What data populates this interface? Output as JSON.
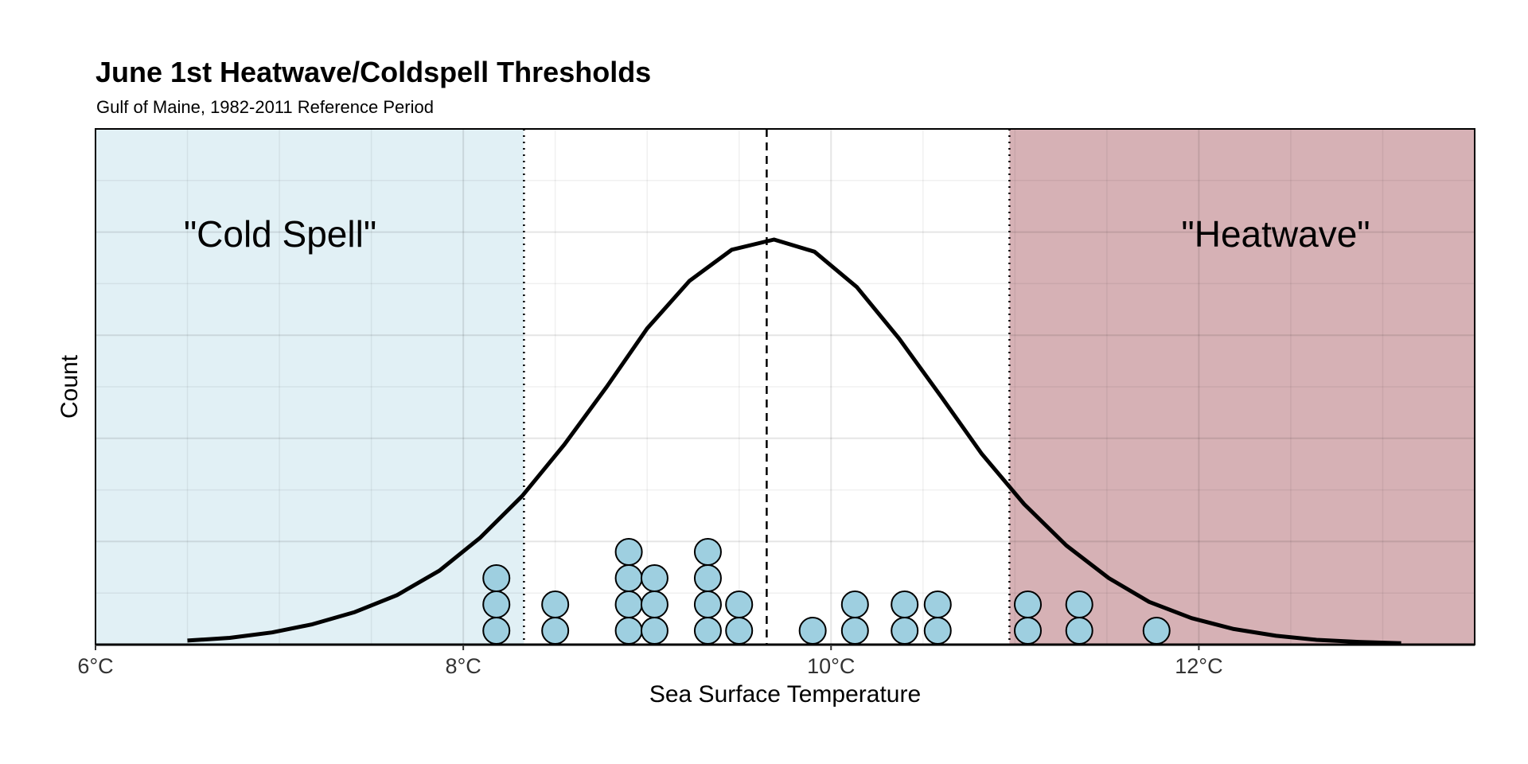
{
  "chart_data": {
    "type": "dotplot",
    "title": "June 1st Heatwave/Coldspell Thresholds",
    "subtitle": "Gulf of Maine, 1982-2011 Reference Period",
    "xlabel": "Sea Surface Temperature",
    "ylabel": "Count",
    "xlim": [
      6,
      13.5
    ],
    "x_ticks": [
      6,
      8,
      10,
      12
    ],
    "x_tick_labels": [
      "6°C",
      "8°C",
      "10°C",
      "12°C"
    ],
    "y_tick_labels_shown": false,
    "grid": true,
    "thresholds": {
      "cold_spell": 8.33,
      "mean": 9.65,
      "heatwave": 10.97
    },
    "regions": [
      {
        "label": "\"Cold Spell\"",
        "from": 6,
        "to": 8.33,
        "color": "#e1f0f5"
      },
      {
        "label": "\"Heatwave\"",
        "from": 10.97,
        "to": 13.5,
        "color": "#d6b1b5"
      }
    ],
    "dots": [
      {
        "x": 8.18,
        "count": 3
      },
      {
        "x": 8.5,
        "count": 2
      },
      {
        "x": 8.9,
        "count": 4
      },
      {
        "x": 9.04,
        "count": 3
      },
      {
        "x": 9.33,
        "count": 4
      },
      {
        "x": 9.5,
        "count": 2
      },
      {
        "x": 9.9,
        "count": 1
      },
      {
        "x": 10.13,
        "count": 2
      },
      {
        "x": 10.4,
        "count": 2
      },
      {
        "x": 10.58,
        "count": 2
      },
      {
        "x": 11.07,
        "count": 2
      },
      {
        "x": 11.35,
        "count": 2
      },
      {
        "x": 11.77,
        "count": 1
      }
    ],
    "dot_color": "#9ecfe0",
    "density_curve": {
      "x": [
        6.5,
        6.73,
        6.96,
        7.18,
        7.41,
        7.64,
        7.87,
        8.09,
        8.32,
        8.55,
        8.78,
        9.0,
        9.23,
        9.46,
        9.69,
        9.91,
        10.14,
        10.37,
        10.6,
        10.82,
        11.05,
        11.28,
        11.51,
        11.73,
        11.96,
        12.19,
        12.42,
        12.64,
        12.87,
        13.1
      ],
      "y": [
        0.6,
        1.0,
        1.8,
        3.0,
        4.8,
        7.3,
        10.9,
        15.7,
        21.9,
        29.5,
        38.0,
        46.6,
        53.6,
        58.2,
        59.7,
        57.9,
        52.7,
        45.1,
        36.5,
        28.1,
        20.7,
        14.6,
        9.8,
        6.3,
        3.9,
        2.3,
        1.3,
        0.7,
        0.4,
        0.2
      ]
    },
    "ylim": [
      0,
      76
    ]
  }
}
